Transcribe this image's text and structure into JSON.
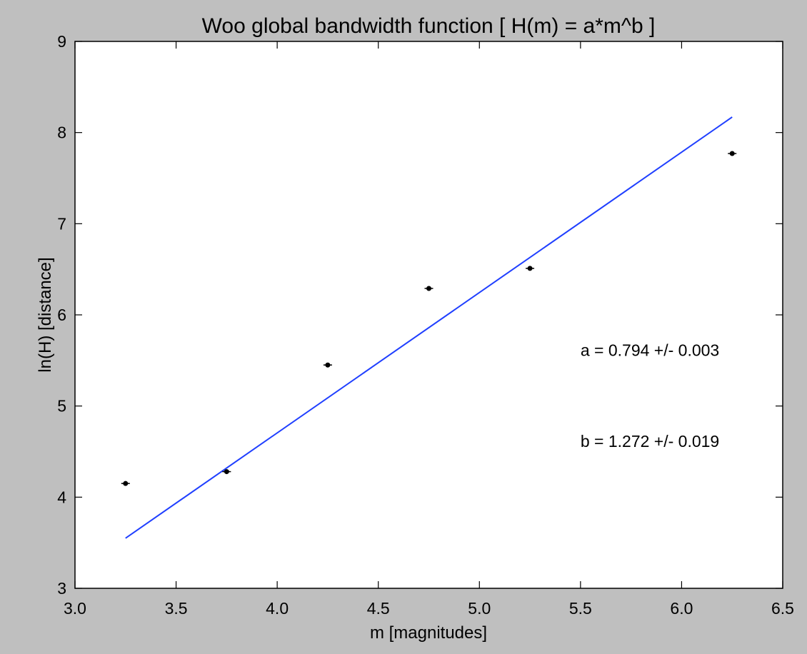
{
  "chart_data": {
    "type": "scatter",
    "title": "Woo global bandwidth function [ H(m) = a*m^b ]",
    "xlabel": "m [magnitudes]",
    "ylabel": "ln(H) [distance]",
    "xlim": [
      3.0,
      6.5
    ],
    "ylim": [
      3,
      9
    ],
    "xticks": [
      "3.0",
      "3.5",
      "4.0",
      "4.5",
      "5.0",
      "5.5",
      "6.0",
      "6.5"
    ],
    "yticks": [
      "3",
      "4",
      "5",
      "6",
      "7",
      "8",
      "9"
    ],
    "grid": false,
    "series": [
      {
        "kind": "points",
        "color": "#000000",
        "x": [
          3.25,
          3.75,
          4.25,
          4.75,
          5.25,
          6.25
        ],
        "y": [
          4.15,
          4.28,
          5.45,
          6.29,
          6.51,
          7.77
        ]
      },
      {
        "kind": "fit-line",
        "color": "#1f3fff",
        "x": [
          3.25,
          6.25
        ],
        "y": [
          3.55,
          8.17
        ]
      }
    ],
    "annotations": [
      {
        "text": "a = 0.794 +/- 0.003",
        "x": 5.5,
        "y": 5.55
      },
      {
        "text": "b = 1.272 +/- 0.019",
        "x": 5.5,
        "y": 4.55
      }
    ]
  }
}
